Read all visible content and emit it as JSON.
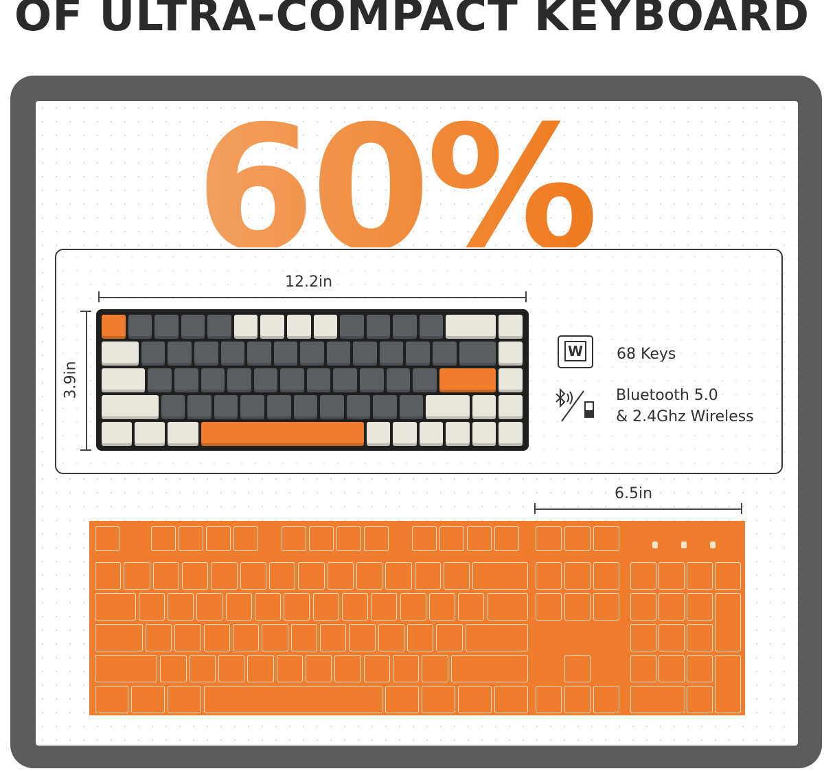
{
  "title": "OF ULTRA-COMPACT KEYBOARD",
  "big_percent": "60%",
  "compact": {
    "width": "12.2in",
    "height": "3.9in"
  },
  "features": [
    {
      "icon": "keycap-icon",
      "keycap_letter": "W",
      "text": "68 Keys"
    },
    {
      "icon": "bluetooth-dongle-icon",
      "line1": "Bluetooth 5.0",
      "line2": "& 2.4Ghz Wireless"
    }
  ],
  "full_size": {
    "width_difference": "6.5in"
  },
  "colors": {
    "orange": "#ef7d2d",
    "frame": "#5c5c5c",
    "key_gray": "#5a5d62",
    "key_beige": "#e9e6dc"
  }
}
